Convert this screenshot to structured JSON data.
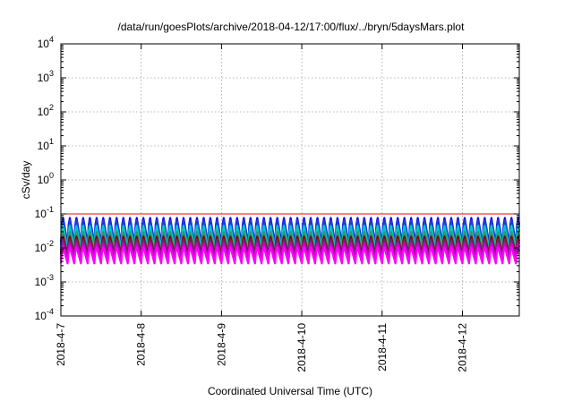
{
  "chart_data": {
    "type": "line",
    "title": "/data/run/goesPlots/archive/2018-04-12/17:00/flux/../bryn/5daysMars.plot",
    "xlabel": "Coordinated Universal Time (UTC)",
    "ylabel": "cSv/day",
    "y_scale": "log",
    "ylim": [
      0.0001,
      10000
    ],
    "xlim": [
      "2018-04-07 00:00",
      "2018-04-12 17:00"
    ],
    "y_ticks": [
      {
        "value": 0.0001,
        "base": "10",
        "exp": "-4"
      },
      {
        "value": 0.001,
        "base": "10",
        "exp": "-3"
      },
      {
        "value": 0.01,
        "base": "10",
        "exp": "-2"
      },
      {
        "value": 0.1,
        "base": "10",
        "exp": "-1"
      },
      {
        "value": 1,
        "base": "10",
        "exp": "0"
      },
      {
        "value": 10,
        "base": "10",
        "exp": "1"
      },
      {
        "value": 100,
        "base": "10",
        "exp": "2"
      },
      {
        "value": 1000,
        "base": "10",
        "exp": "3"
      },
      {
        "value": 10000,
        "base": "10",
        "exp": "4"
      }
    ],
    "x_ticks": [
      "2018-4-7",
      "2018-4-8",
      "2018-4-9",
      "2018-4-10",
      "2018-4-11",
      "2018-4-12"
    ],
    "grid": true,
    "legend": "none",
    "oscillation": {
      "period_hours": 2,
      "cycles_per_day": 12
    },
    "series": [
      {
        "color": "#ff0000",
        "peak": 0.1,
        "trough": 0.1
      },
      {
        "color": "#0000ff",
        "peak": 0.095,
        "trough": 0.013
      },
      {
        "color": "#1a3fd0",
        "peak": 0.08,
        "trough": 0.011
      },
      {
        "color": "#00c8c8",
        "peak": 0.055,
        "trough": 0.009
      },
      {
        "color": "#2a9a6a",
        "peak": 0.035,
        "trough": 0.0075
      },
      {
        "color": "#8a0000",
        "peak": 0.025,
        "trough": 0.0065
      },
      {
        "color": "#6a2a6a",
        "peak": 0.02,
        "trough": 0.006
      },
      {
        "color": "#cc00cc",
        "peak": 0.016,
        "trough": 0.0045
      },
      {
        "color": "#ff00ff",
        "peak": 0.012,
        "trough": 0.0035
      }
    ]
  }
}
